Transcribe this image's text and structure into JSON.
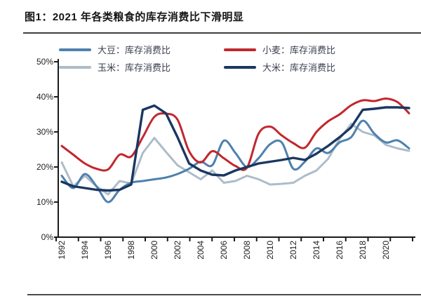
{
  "figure": {
    "title": "图1：2021 年各类粮食的库存消费比下滑明显"
  },
  "legend": {
    "items": [
      {
        "label": "大豆：库存消费比",
        "color": "#4e81ae"
      },
      {
        "label": "小麦：库存消费比",
        "color": "#c2272e"
      },
      {
        "label": "玉米：库存消费比",
        "color": "#adbcc9"
      },
      {
        "label": "大米：库存消费比",
        "color": "#1a3760"
      }
    ]
  },
  "chart_data": {
    "type": "line",
    "title": "图1：2021 年各类粮食的库存消费比下滑明显",
    "xlabel": "",
    "ylabel": "",
    "ylim": [
      0,
      50
    ],
    "grid": false,
    "legend_position": "top",
    "x": [
      1992,
      1993,
      1994,
      1995,
      1996,
      1997,
      1998,
      1999,
      2000,
      2001,
      2002,
      2003,
      2004,
      2005,
      2006,
      2007,
      2008,
      2009,
      2010,
      2011,
      2012,
      2013,
      2014,
      2015,
      2016,
      2017,
      2018,
      2019,
      2020,
      2021,
      2022
    ],
    "x_tick_labels": [
      "1992",
      "1994",
      "1996",
      "1998",
      "2000",
      "2002",
      "2004",
      "2006",
      "2008",
      "2010",
      "2012",
      "2014",
      "2016",
      "2018",
      "2020"
    ],
    "y_tick_labels": [
      "0%",
      "10%",
      "20%",
      "30%",
      "40%",
      "50%"
    ],
    "series": [
      {
        "name": "大豆：库存消费比",
        "color": "#4e81ae",
        "smooth": true,
        "values": [
          17.5,
          14.0,
          18.0,
          14.5,
          10.0,
          13.5,
          15.5,
          16.0,
          16.5,
          17.0,
          18.0,
          19.5,
          21.5,
          20.5,
          27.5,
          24.0,
          20.0,
          22.5,
          26.5,
          27.0,
          19.5,
          21.5,
          25.3,
          24.0,
          27.0,
          28.5,
          33.2,
          29.5,
          27.0,
          27.6,
          25.3
        ]
      },
      {
        "name": "小麦：库存消费比",
        "color": "#c2272e",
        "smooth": true,
        "values": [
          26.0,
          23.5,
          21.0,
          19.5,
          19.3,
          23.5,
          23.0,
          28.5,
          34.3,
          35.2,
          33.5,
          24.5,
          21.3,
          24.5,
          22.5,
          20.3,
          19.8,
          29.5,
          31.5,
          29.0,
          26.8,
          25.5,
          30.0,
          33.0,
          35.0,
          37.6,
          39.0,
          38.8,
          39.5,
          38.5,
          35.3
        ]
      },
      {
        "name": "玉米：库存消费比",
        "color": "#adbcc9",
        "smooth": false,
        "values": [
          21.3,
          14.5,
          17.5,
          14.5,
          12.2,
          16.0,
          15.3,
          24.0,
          28.3,
          24.3,
          20.5,
          18.5,
          16.5,
          19.0,
          15.5,
          16.0,
          17.5,
          16.5,
          15.0,
          15.2,
          15.5,
          17.5,
          19.0,
          22.3,
          28.0,
          32.3,
          30.0,
          29.0,
          26.3,
          25.3,
          24.6
        ]
      },
      {
        "name": "大米：库存消费比",
        "color": "#1a3760",
        "smooth": false,
        "values": [
          15.8,
          14.5,
          14.0,
          13.5,
          13.3,
          13.5,
          15.0,
          36.3,
          37.5,
          35.3,
          28.5,
          21.0,
          19.0,
          17.8,
          17.6,
          19.0,
          20.0,
          21.0,
          21.5,
          22.0,
          22.6,
          22.0,
          23.8,
          26.0,
          28.5,
          31.3,
          36.3,
          36.6,
          37.0,
          37.0,
          36.8
        ]
      }
    ]
  }
}
